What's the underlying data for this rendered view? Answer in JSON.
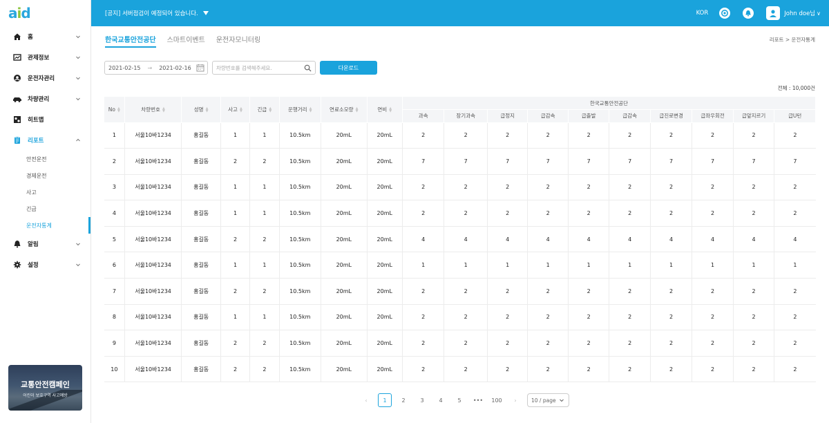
{
  "logo": {
    "a": "a",
    "i": "i",
    "d": "d"
  },
  "topbar": {
    "notice": "[공지] 서버점검이 예정되어 있습니다.",
    "lang": "KOR",
    "username": "John doe님",
    "user_caret": "∨"
  },
  "sidebar": {
    "items": [
      {
        "label": "홈",
        "icon": "home-icon"
      },
      {
        "label": "관제정보",
        "icon": "chart-icon"
      },
      {
        "label": "운전자관리",
        "icon": "driver-icon"
      },
      {
        "label": "차량관리",
        "icon": "car-icon"
      },
      {
        "label": "히트맵",
        "icon": "map-icon"
      },
      {
        "label": "리포트",
        "icon": "report-icon"
      },
      {
        "label": "알림",
        "icon": "bell-icon"
      },
      {
        "label": "설정",
        "icon": "gear-icon"
      }
    ],
    "report_sub": [
      "안전운전",
      "경제운전",
      "사고",
      "긴급",
      "운전자통계"
    ],
    "campaign": {
      "title": "교통안전캠페인",
      "subtitle": "어린이 보호구역 사고예방"
    }
  },
  "main": {
    "tabs": [
      "한국교통안전공단",
      "스마트이벤트",
      "운전자모니터링"
    ],
    "breadcrumb": "리포트 > 운전자통계",
    "date_from": "2021-02-15",
    "date_sep": "→",
    "date_to": "2021-02-16",
    "search_placeholder": "차량번호를 검색해주세요.",
    "download_label": "다운로드",
    "total": "전체 : 10,000건"
  },
  "table": {
    "group_header": "한국교통안전공단",
    "headers": [
      "No",
      "차량번호",
      "성명",
      "사고",
      "긴급",
      "운행거리",
      "연료소모량",
      "연비"
    ],
    "sub_headers": [
      "과속",
      "장기과속",
      "급정지",
      "급감속",
      "급출발",
      "급감속",
      "급진로변경",
      "급좌우회전",
      "급앞지르기",
      "급U턴"
    ],
    "rows": [
      {
        "no": "1",
        "plate": "서울10바1234",
        "name": "홍길동",
        "accident": "1",
        "emergency": "1",
        "distance": "10.5km",
        "fuel": "20mL",
        "efficiency": "20mL",
        "events": [
          "2",
          "2",
          "2",
          "2",
          "2",
          "2",
          "2",
          "2",
          "2",
          "2"
        ]
      },
      {
        "no": "2",
        "plate": "서울10바1234",
        "name": "홍길동",
        "accident": "2",
        "emergency": "2",
        "distance": "10.5km",
        "fuel": "20mL",
        "efficiency": "20mL",
        "events": [
          "7",
          "7",
          "7",
          "7",
          "7",
          "7",
          "7",
          "7",
          "7",
          "7"
        ]
      },
      {
        "no": "3",
        "plate": "서울10바1234",
        "name": "홍길동",
        "accident": "1",
        "emergency": "1",
        "distance": "10.5km",
        "fuel": "20mL",
        "efficiency": "20mL",
        "events": [
          "2",
          "2",
          "2",
          "2",
          "2",
          "2",
          "2",
          "2",
          "2",
          "2"
        ]
      },
      {
        "no": "4",
        "plate": "서울10바1234",
        "name": "홍길동",
        "accident": "1",
        "emergency": "1",
        "distance": "10.5km",
        "fuel": "20mL",
        "efficiency": "20mL",
        "events": [
          "2",
          "2",
          "2",
          "2",
          "2",
          "2",
          "2",
          "2",
          "2",
          "2"
        ]
      },
      {
        "no": "5",
        "plate": "서울10바1234",
        "name": "홍길동",
        "accident": "2",
        "emergency": "2",
        "distance": "10.5km",
        "fuel": "20mL",
        "efficiency": "20mL",
        "events": [
          "4",
          "4",
          "4",
          "4",
          "4",
          "4",
          "4",
          "4",
          "4",
          "4"
        ]
      },
      {
        "no": "6",
        "plate": "서울10바1234",
        "name": "홍길동",
        "accident": "1",
        "emergency": "1",
        "distance": "10.5km",
        "fuel": "20mL",
        "efficiency": "20mL",
        "events": [
          "1",
          "1",
          "1",
          "1",
          "1",
          "1",
          "1",
          "1",
          "1",
          "1"
        ]
      },
      {
        "no": "7",
        "plate": "서울10바1234",
        "name": "홍길동",
        "accident": "2",
        "emergency": "2",
        "distance": "10.5km",
        "fuel": "20mL",
        "efficiency": "20mL",
        "events": [
          "2",
          "2",
          "2",
          "2",
          "2",
          "2",
          "2",
          "2",
          "2",
          "2"
        ]
      },
      {
        "no": "8",
        "plate": "서울10바1234",
        "name": "홍길동",
        "accident": "1",
        "emergency": "1",
        "distance": "10.5km",
        "fuel": "20mL",
        "efficiency": "20mL",
        "events": [
          "2",
          "2",
          "2",
          "2",
          "2",
          "2",
          "2",
          "2",
          "2",
          "2"
        ]
      },
      {
        "no": "9",
        "plate": "서울10바1234",
        "name": "홍길동",
        "accident": "2",
        "emergency": "2",
        "distance": "10.5km",
        "fuel": "20mL",
        "efficiency": "20mL",
        "events": [
          "2",
          "2",
          "2",
          "2",
          "2",
          "2",
          "2",
          "2",
          "2",
          "2"
        ]
      },
      {
        "no": "10",
        "plate": "서울10바1234",
        "name": "홍길동",
        "accident": "2",
        "emergency": "2",
        "distance": "10.5km",
        "fuel": "20mL",
        "efficiency": "20mL",
        "events": [
          "2",
          "2",
          "2",
          "2",
          "2",
          "2",
          "2",
          "2",
          "2",
          "2"
        ]
      }
    ]
  },
  "pagination": {
    "prev": "‹",
    "pages": [
      "1",
      "2",
      "3",
      "4",
      "5"
    ],
    "ellipsis": "•••",
    "last": "100",
    "next": "›",
    "page_size": "10 / page"
  },
  "colors": {
    "accent": "#1aa3dc",
    "logo_green": "#8cc63f"
  }
}
